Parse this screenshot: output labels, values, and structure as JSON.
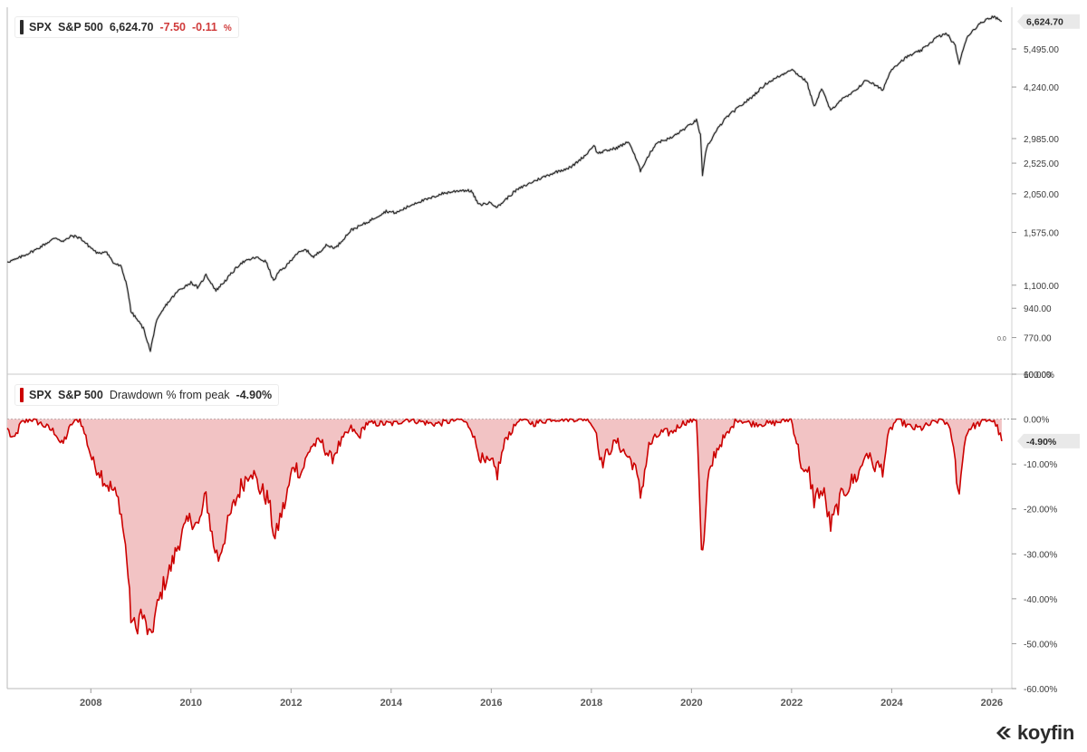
{
  "price_panel": {
    "ticker": "SPX",
    "name": "S&P 500",
    "last": "6,624.70",
    "change": "-7.50",
    "change_pct": "-0.11",
    "pct_sign": "%",
    "last_tag": "6,624.70",
    "series_color": "#2b2b2b"
  },
  "drawdown_panel": {
    "ticker": "SPX",
    "name": "S&P 500",
    "indicator": "Drawdown % from peak",
    "value": "-4.90%",
    "last_tag": "-4.90%",
    "series_color": "#cc0000",
    "fill_color": "#f2c3c4"
  },
  "misc_label": "0.0",
  "brand": "koyfin",
  "chart_data": [
    {
      "type": "line",
      "title": "SPX S&P 500",
      "scale": "log",
      "ylim": [
        600,
        7300
      ],
      "y_ticks": [
        {
          "value": 5495,
          "label": "5,495.00"
        },
        {
          "value": 4240,
          "label": "4,240.00"
        },
        {
          "value": 2985,
          "label": "2,985.00"
        },
        {
          "value": 2525,
          "label": "2,525.00"
        },
        {
          "value": 2050,
          "label": "2,050.00"
        },
        {
          "value": 1575,
          "label": "1,575.00"
        },
        {
          "value": 1100,
          "label": "1,100.00"
        },
        {
          "value": 940,
          "label": "940.00"
        },
        {
          "value": 770,
          "label": "770.00"
        },
        {
          "value": 600,
          "label": "600.00"
        }
      ],
      "x": [
        2006.33,
        2006.5,
        2006.9,
        2007.3,
        2007.45,
        2007.62,
        2007.78,
        2007.95,
        2008.15,
        2008.3,
        2008.45,
        2008.6,
        2008.72,
        2008.8,
        2008.9,
        2009.05,
        2009.19,
        2009.3,
        2009.5,
        2009.75,
        2010.0,
        2010.15,
        2010.3,
        2010.5,
        2010.7,
        2011.0,
        2011.3,
        2011.5,
        2011.65,
        2011.75,
        2011.9,
        2012.1,
        2012.3,
        2012.45,
        2012.7,
        2012.9,
        2013.2,
        2013.5,
        2013.9,
        2014.1,
        2014.5,
        2014.8,
        2015.0,
        2015.4,
        2015.6,
        2015.75,
        2016.0,
        2016.12,
        2016.5,
        2016.9,
        2017.3,
        2017.6,
        2017.9,
        2018.05,
        2018.12,
        2018.5,
        2018.75,
        2018.98,
        2019.3,
        2019.6,
        2019.9,
        2020.1,
        2020.18,
        2020.22,
        2020.3,
        2020.5,
        2020.7,
        2020.9,
        2021.2,
        2021.5,
        2021.8,
        2021.99,
        2022.3,
        2022.45,
        2022.6,
        2022.78,
        2022.95,
        2023.2,
        2023.5,
        2023.82,
        2024.0,
        2024.3,
        2024.6,
        2024.9,
        2025.1,
        2025.27,
        2025.35,
        2025.5,
        2025.7,
        2025.9,
        2026.05,
        2026.2
      ],
      "values": [
        1290,
        1310,
        1400,
        1520,
        1480,
        1540,
        1520,
        1440,
        1360,
        1390,
        1280,
        1250,
        1100,
        920,
        880,
        820,
        700,
        850,
        960,
        1060,
        1120,
        1080,
        1180,
        1060,
        1140,
        1280,
        1330,
        1290,
        1130,
        1200,
        1250,
        1360,
        1400,
        1330,
        1440,
        1420,
        1600,
        1680,
        1820,
        1800,
        1930,
        1990,
        2050,
        2100,
        2090,
        1900,
        1930,
        1870,
        2100,
        2250,
        2380,
        2460,
        2680,
        2860,
        2700,
        2800,
        2920,
        2400,
        2900,
        3000,
        3220,
        3380,
        3050,
        2300,
        2800,
        3150,
        3450,
        3650,
        3950,
        4350,
        4600,
        4790,
        4400,
        3700,
        4200,
        3600,
        3850,
        4050,
        4450,
        4150,
        4800,
        5200,
        5450,
        5950,
        6100,
        5600,
        4950,
        5950,
        6400,
        6750,
        6850,
        6624.7
      ]
    },
    {
      "type": "area",
      "title": "SPX S&P 500 Drawdown % from peak",
      "ylim": [
        -60,
        10
      ],
      "y_ticks": [
        {
          "value": 10,
          "label": "10.00%"
        },
        {
          "value": 0,
          "label": "0.00%"
        },
        {
          "value": -10,
          "label": "-10.00%"
        },
        {
          "value": -20,
          "label": "-20.00%"
        },
        {
          "value": -30,
          "label": "-30.00%"
        },
        {
          "value": -40,
          "label": "-40.00%"
        },
        {
          "value": -50,
          "label": "-50.00%"
        },
        {
          "value": -60,
          "label": "-60.00%"
        }
      ],
      "x_ticks": [
        "2008",
        "2010",
        "2012",
        "2014",
        "2016",
        "2018",
        "2020",
        "2022",
        "2024",
        "2026"
      ],
      "x": [
        2006.33,
        2006.45,
        2006.6,
        2006.8,
        2007.0,
        2007.3,
        2007.42,
        2007.62,
        2007.78,
        2007.9,
        2008.05,
        2008.15,
        2008.3,
        2008.45,
        2008.58,
        2008.72,
        2008.8,
        2008.9,
        2009.0,
        2009.1,
        2009.19,
        2009.3,
        2009.45,
        2009.6,
        2009.8,
        2010.0,
        2010.15,
        2010.3,
        2010.45,
        2010.55,
        2010.8,
        2011.0,
        2011.2,
        2011.35,
        2011.55,
        2011.68,
        2011.78,
        2011.9,
        2012.05,
        2012.2,
        2012.4,
        2012.6,
        2012.8,
        2012.95,
        2013.2,
        2013.35,
        2013.5,
        2013.7,
        2014.08,
        2014.3,
        2014.8,
        2014.95,
        2015.4,
        2015.6,
        2015.7,
        2015.85,
        2016.0,
        2016.12,
        2016.3,
        2016.45,
        2016.55,
        2016.85,
        2017.2,
        2017.6,
        2017.95,
        2018.1,
        2018.2,
        2018.35,
        2018.5,
        2018.7,
        2018.85,
        2018.98,
        2019.15,
        2019.3,
        2019.4,
        2019.6,
        2019.8,
        2020.1,
        2020.15,
        2020.2,
        2020.25,
        2020.32,
        2020.45,
        2020.6,
        2020.75,
        2020.9,
        2021.2,
        2021.6,
        2021.99,
        2022.1,
        2022.25,
        2022.35,
        2022.45,
        2022.55,
        2022.65,
        2022.78,
        2022.9,
        2023.05,
        2023.2,
        2023.35,
        2023.5,
        2023.6,
        2023.82,
        2023.95,
        2024.1,
        2024.4,
        2024.6,
        2024.8,
        2025.0,
        2025.1,
        2025.2,
        2025.27,
        2025.35,
        2025.45,
        2025.55,
        2025.75,
        2025.95,
        2026.08,
        2026.2
      ],
      "values": [
        -2,
        -5,
        -1,
        0,
        -1,
        -3,
        -6,
        -1,
        0,
        -4,
        -10,
        -11,
        -14,
        -16,
        -19,
        -31,
        -44,
        -47,
        -43,
        -46,
        -49,
        -43,
        -37,
        -33,
        -26,
        -22,
        -24,
        -17,
        -28,
        -31,
        -21,
        -15,
        -11,
        -15,
        -18,
        -27,
        -22,
        -18,
        -10,
        -12,
        -6,
        -5,
        -9,
        -6,
        -2,
        -4,
        -1,
        -1,
        -1,
        0,
        -1,
        -1,
        0,
        -2,
        -6,
        -10,
        -10,
        -12,
        -4,
        -2,
        0,
        -1,
        0,
        0,
        0,
        -3,
        -10,
        -7,
        -5,
        -8,
        -10,
        -17,
        -6,
        -4,
        -3,
        -3,
        -1,
        0,
        -12,
        -30,
        -28,
        -15,
        -8,
        -5,
        -3,
        0,
        -1,
        -1,
        0,
        -5,
        -13,
        -12,
        -18,
        -16,
        -17,
        -24,
        -20,
        -16,
        -14,
        -12,
        -7,
        -10,
        -11,
        -3,
        0,
        -2,
        -2,
        -1,
        0,
        -1,
        -4,
        -10,
        -17,
        -5,
        -2,
        -1,
        0,
        -1,
        -4.9
      ]
    }
  ]
}
